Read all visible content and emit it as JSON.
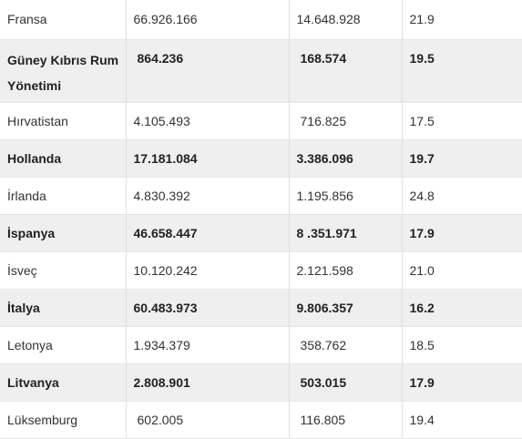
{
  "table": {
    "rows": [
      {
        "country": "Fransa",
        "population": "66.926.166",
        "elderly": "14.648.928",
        "percent": "21.9",
        "bold": false
      },
      {
        "country": "Güney Kıbrıs Rum Yönetimi",
        "population": "864.236",
        "elderly": "168.574",
        "percent": "19.5",
        "bold": true
      },
      {
        "country": "Hırvatistan",
        "population": "4.105.493",
        "elderly": "716.825",
        "percent": "17.5",
        "bold": false
      },
      {
        "country": "Hollanda",
        "population": "17.181.084",
        "elderly": "3.386.096",
        "percent": "19.7",
        "bold": true
      },
      {
        "country": "İrlanda",
        "population": "4.830.392",
        "elderly": "1.195.856",
        "percent": "24.8",
        "bold": false
      },
      {
        "country": "İspanya",
        "population": "46.658.447",
        "elderly": "8 .351.971",
        "percent": "17.9",
        "bold": true
      },
      {
        "country": "İsveç",
        "population": "10.120.242",
        "elderly": "2.121.598",
        "percent": "21.0",
        "bold": false
      },
      {
        "country": "İtalya",
        "population": "60.483.973",
        "elderly": "9.806.357",
        "percent": "16.2",
        "bold": true
      },
      {
        "country": "Letonya",
        "population": "1.934.379",
        "elderly": "358.762",
        "percent": "18.5",
        "bold": false
      },
      {
        "country": "Litvanya",
        "population": "2.808.901",
        "elderly": "503.015",
        "percent": "17.9",
        "bold": true
      },
      {
        "country": "Lüksemburg",
        "population": "602.005",
        "elderly": "116.805",
        "percent": "19.4",
        "bold": false
      }
    ]
  }
}
